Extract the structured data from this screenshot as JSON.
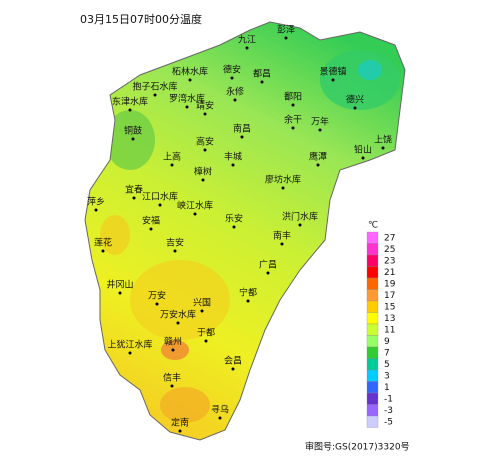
{
  "title": "03月15日07时00分温度",
  "cities": [
    "彭泽",
    "九江",
    "柘林水库",
    "德安",
    "都昌",
    "景德镇",
    "抱子石水库",
    "罗湾水库",
    "永修",
    "鄱阳",
    "德兴",
    "东津水库",
    "靖安",
    "余干",
    "万年",
    "铜鼓",
    "南昌",
    "高安",
    "上饶",
    "铅山",
    "上高",
    "丰城",
    "鹰潭",
    "樟树",
    "廖坊水库",
    "宜春",
    "江口水库",
    "萍乡",
    "峡江水库",
    "乐安",
    "洪门水库",
    "安福",
    "南丰",
    "莲花",
    "吉安",
    "广昌",
    "井冈山",
    "万安",
    "宁都",
    "兴国",
    "万安水库",
    "于都",
    "上犹江水库",
    "赣州",
    "会昌",
    "信丰",
    "寻乌",
    "定南"
  ],
  "legend": {
    "unit": "℃",
    "items": [
      {
        "value": 27,
        "color": "#ff66ff"
      },
      {
        "value": 25,
        "color": "#ff33cc"
      },
      {
        "value": 23,
        "color": "#ff0066"
      },
      {
        "value": 21,
        "color": "#ff0000"
      },
      {
        "value": 19,
        "color": "#ff6600"
      },
      {
        "value": 17,
        "color": "#ff9933"
      },
      {
        "value": 15,
        "color": "#ffcc00"
      },
      {
        "value": 13,
        "color": "#ffff00"
      },
      {
        "value": 11,
        "color": "#ccff33"
      },
      {
        "value": 9,
        "color": "#99ff66"
      },
      {
        "value": 7,
        "color": "#33cc33"
      },
      {
        "value": 5,
        "color": "#00cc99"
      },
      {
        "value": 3,
        "color": "#00ccff"
      },
      {
        "value": 1,
        "color": "#3366ff"
      },
      {
        "value": -1,
        "color": "#6633cc"
      },
      {
        "value": -3,
        "color": "#9966ff"
      },
      {
        "value": -5,
        "color": "#ccccff"
      }
    ]
  },
  "footer": "审图号:GS(2017)3320号"
}
